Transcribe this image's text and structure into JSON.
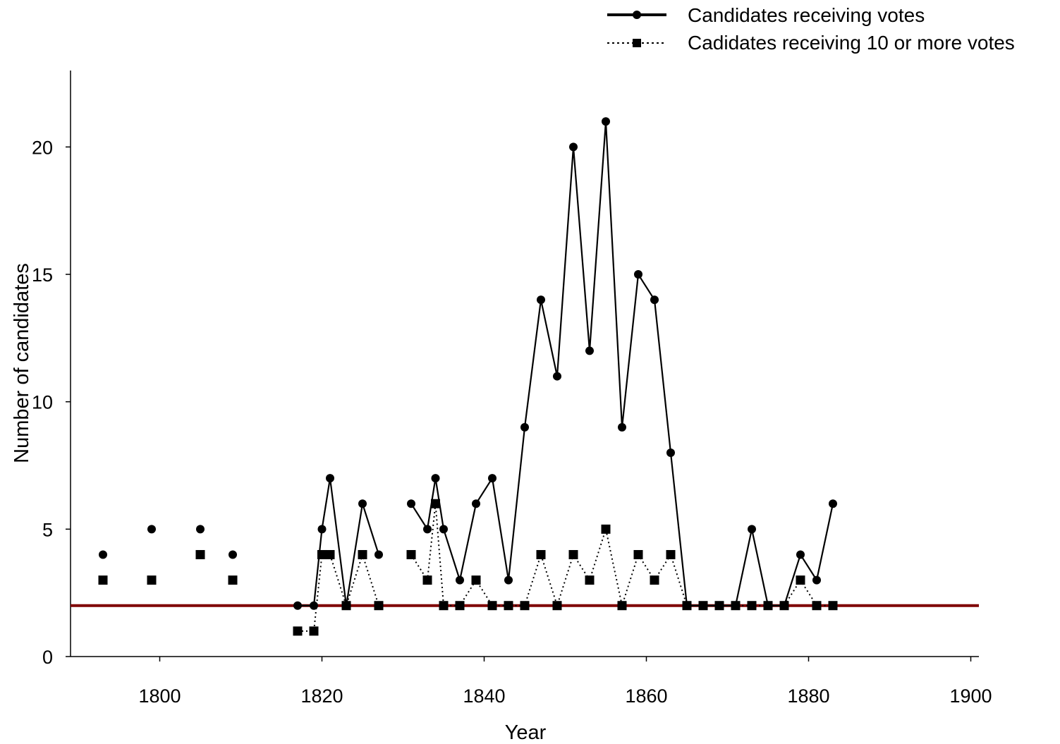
{
  "chart_data": {
    "type": "line",
    "xlabel": "Year",
    "ylabel": "Number of candidates",
    "xlim": [
      1789,
      1901
    ],
    "ylim": [
      0,
      23
    ],
    "xticks": [
      1800,
      1820,
      1840,
      1860,
      1880,
      1900
    ],
    "yticks": [
      0,
      5,
      10,
      15,
      20
    ],
    "grid": false,
    "legend_position": "top-right",
    "reference_line": {
      "y": 2,
      "color": "#7f0000"
    },
    "series": [
      {
        "name": "Candidates receiving votes",
        "style": "solid",
        "marker": "circle",
        "color": "#000000",
        "segments": [
          [
            [
              1793,
              4
            ]
          ],
          [
            [
              1799,
              5
            ]
          ],
          [
            [
              1805,
              5
            ]
          ],
          [
            [
              1809,
              4
            ]
          ],
          [
            [
              1817,
              2
            ],
            [
              1819,
              2
            ],
            [
              1820,
              5
            ],
            [
              1821,
              7
            ],
            [
              1823,
              2
            ],
            [
              1825,
              6
            ],
            [
              1827,
              4
            ]
          ],
          [
            [
              1831,
              6
            ],
            [
              1833,
              5
            ],
            [
              1834,
              7
            ],
            [
              1835,
              5
            ],
            [
              1837,
              3
            ],
            [
              1839,
              6
            ],
            [
              1841,
              7
            ],
            [
              1843,
              3
            ],
            [
              1845,
              9
            ],
            [
              1847,
              14
            ],
            [
              1849,
              11
            ],
            [
              1851,
              20
            ],
            [
              1853,
              12
            ],
            [
              1855,
              21
            ],
            [
              1857,
              9
            ],
            [
              1859,
              15
            ],
            [
              1861,
              14
            ],
            [
              1863,
              8
            ],
            [
              1865,
              2
            ],
            [
              1867,
              2
            ],
            [
              1869,
              2
            ],
            [
              1871,
              2
            ],
            [
              1873,
              5
            ],
            [
              1875,
              2
            ],
            [
              1877,
              2
            ],
            [
              1879,
              4
            ],
            [
              1881,
              3
            ],
            [
              1883,
              6
            ]
          ]
        ]
      },
      {
        "name": "Cadidates receiving 10 or more votes",
        "style": "dotted",
        "marker": "square",
        "color": "#000000",
        "segments": [
          [
            [
              1793,
              3
            ]
          ],
          [
            [
              1799,
              3
            ]
          ],
          [
            [
              1805,
              4
            ]
          ],
          [
            [
              1809,
              3
            ]
          ],
          [
            [
              1817,
              1
            ],
            [
              1819,
              1
            ],
            [
              1820,
              4
            ],
            [
              1821,
              4
            ],
            [
              1823,
              2
            ],
            [
              1825,
              4
            ],
            [
              1827,
              2
            ]
          ],
          [
            [
              1831,
              4
            ],
            [
              1833,
              3
            ],
            [
              1834,
              6
            ],
            [
              1835,
              2
            ],
            [
              1837,
              2
            ],
            [
              1839,
              3
            ],
            [
              1841,
              2
            ],
            [
              1843,
              2
            ],
            [
              1845,
              2
            ],
            [
              1847,
              4
            ],
            [
              1849,
              2
            ],
            [
              1851,
              4
            ],
            [
              1853,
              3
            ],
            [
              1855,
              5
            ],
            [
              1857,
              2
            ],
            [
              1859,
              4
            ],
            [
              1861,
              3
            ],
            [
              1863,
              4
            ],
            [
              1865,
              2
            ],
            [
              1867,
              2
            ],
            [
              1869,
              2
            ],
            [
              1871,
              2
            ],
            [
              1873,
              2
            ],
            [
              1875,
              2
            ],
            [
              1877,
              2
            ],
            [
              1879,
              3
            ],
            [
              1881,
              2
            ],
            [
              1883,
              2
            ]
          ]
        ]
      }
    ]
  }
}
